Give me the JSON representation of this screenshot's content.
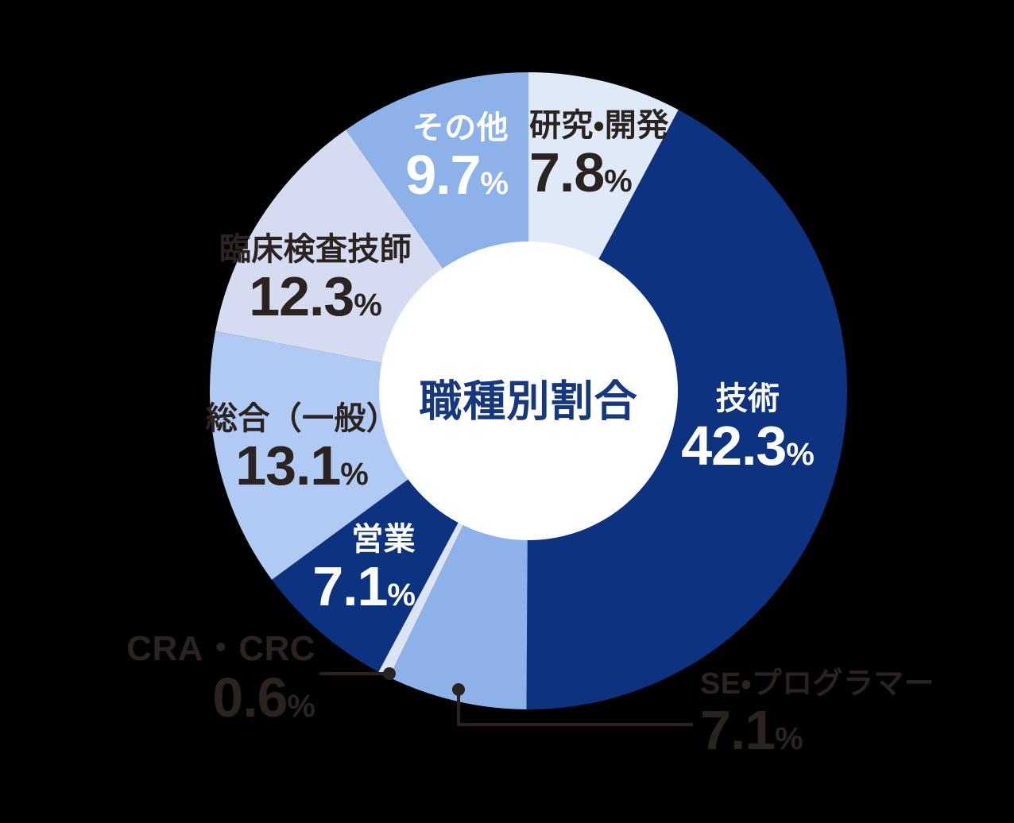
{
  "page": {
    "background_color": "#000000"
  },
  "chart_data": {
    "type": "pie",
    "variant": "donut",
    "title": "職種別割合",
    "title_color": "#17377e",
    "unit": "%",
    "start_angle_deg": 0,
    "direction": "clockwise",
    "hole_color": "#ffffff",
    "leader_color": "#2b2320",
    "segments": [
      {
        "label": "研究・開発",
        "value": 7.8,
        "color": "#dfe9f8",
        "text_color": "#2b2320"
      },
      {
        "label": "技術",
        "value": 42.3,
        "color": "#0d3380",
        "text_color": "#ffffff"
      },
      {
        "label": "SE・プログラマー",
        "value": 7.1,
        "color": "#8db2e9",
        "text_color": "#2b2320"
      },
      {
        "label": "CRA・CRC",
        "value": 0.6,
        "color": "#dae4f6",
        "text_color": "#2b2320"
      },
      {
        "label": "営業",
        "value": 7.1,
        "color": "#0d3380",
        "text_color": "#ffffff"
      },
      {
        "label": "総合（一般）",
        "value": 13.1,
        "color": "#b0caf3",
        "text_color": "#2b2320"
      },
      {
        "label": "臨床検査技師",
        "value": 12.3,
        "color": "#d5dbf0",
        "text_color": "#2b2320"
      },
      {
        "label": "その他",
        "value": 9.7,
        "color": "#8db2e9",
        "text_color": "#ffffff"
      }
    ]
  }
}
